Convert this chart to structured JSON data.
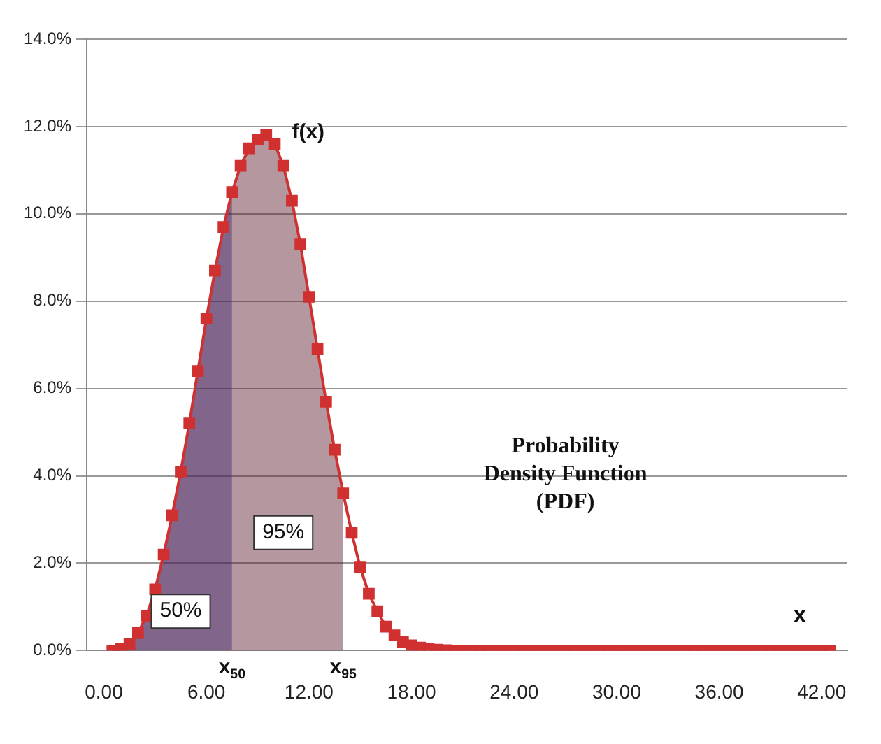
{
  "chart_data": {
    "type": "line",
    "xlabel": "x",
    "marker": "square",
    "grid": "y",
    "legend": false,
    "xlim": [
      -1,
      43.5
    ],
    "xticks": [
      {
        "value": 0,
        "label": "0.00"
      },
      {
        "value": 6,
        "label": "6.00"
      },
      {
        "value": 12,
        "label": "12.00"
      },
      {
        "value": 18,
        "label": "18.00"
      },
      {
        "value": 24,
        "label": "24.00"
      },
      {
        "value": 30,
        "label": "30.00"
      },
      {
        "value": 36,
        "label": "36.00"
      },
      {
        "value": 42,
        "label": "42.00"
      }
    ],
    "ylim": [
      0,
      14
    ],
    "yticks": [
      {
        "value": 0,
        "label": "0.0%"
      },
      {
        "value": 2,
        "label": "2.0%"
      },
      {
        "value": 4,
        "label": "4.0%"
      },
      {
        "value": 6,
        "label": "6.0%"
      },
      {
        "value": 8,
        "label": "8.0%"
      },
      {
        "value": 10,
        "label": "10.0%"
      },
      {
        "value": 12,
        "label": "12.0%"
      },
      {
        "value": 14,
        "label": "14.0%"
      }
    ],
    "series": [
      {
        "type": "area",
        "marker": "none",
        "color": "#5a1a2a",
        "x": [
          0.5,
          1,
          1.5,
          2,
          2.5,
          3,
          3.5,
          4,
          4.5,
          5,
          5.5,
          6,
          6.5,
          7,
          7.5,
          8,
          8.5,
          9,
          9.5,
          10,
          10.5,
          11,
          11.5,
          12,
          12.5,
          13,
          13.5,
          14
        ],
        "values": [
          0,
          0.05,
          0.15,
          0.4,
          0.8,
          1.4,
          2.2,
          3.1,
          4.1,
          5.2,
          6.4,
          7.6,
          8.7,
          9.7,
          10.5,
          11.1,
          11.5,
          11.7,
          11.8,
          11.6,
          11.1,
          10.3,
          9.3,
          8.1,
          6.9,
          5.7,
          4.6,
          3.6
        ]
      },
      {
        "type": "area",
        "marker": "none",
        "color": "#3333aa",
        "x": [
          0.5,
          1,
          1.5,
          2,
          2.5,
          3,
          3.5,
          4,
          4.5,
          5,
          5.5,
          6,
          6.5,
          7,
          7.5
        ],
        "values": [
          0,
          0.05,
          0.15,
          0.4,
          0.8,
          1.4,
          2.2,
          3.1,
          4.1,
          5.2,
          6.4,
          7.6,
          8.7,
          9.7,
          10.5
        ]
      },
      {
        "color": "#d03030",
        "x": [
          0.5,
          1,
          1.5,
          2,
          2.5,
          3,
          3.5,
          4,
          4.5,
          5,
          5.5,
          6,
          6.5,
          7,
          7.5,
          8,
          8.5,
          9,
          9.5,
          10,
          10.5,
          11,
          11.5,
          12,
          12.5,
          13,
          13.5,
          14,
          14.5,
          15,
          15.5,
          16,
          16.5,
          17,
          17.5,
          18,
          18.5,
          19,
          19.5,
          20,
          20.5,
          21,
          21.5,
          22,
          22.5,
          23,
          23.5,
          24,
          24.5,
          25,
          25.5,
          26,
          26.5,
          27,
          27.5,
          28,
          28.5,
          29,
          29.5,
          30,
          30.5,
          31,
          31.5,
          32,
          32.5,
          33,
          33.5,
          34,
          34.5,
          35,
          35.5,
          36,
          36.5,
          37,
          37.5,
          38,
          38.5,
          39,
          39.5,
          40,
          40.5,
          41,
          41.5,
          42,
          42.5
        ],
        "values": [
          0,
          0.05,
          0.15,
          0.4,
          0.8,
          1.4,
          2.2,
          3.1,
          4.1,
          5.2,
          6.4,
          7.6,
          8.7,
          9.7,
          10.5,
          11.1,
          11.5,
          11.7,
          11.8,
          11.6,
          11.1,
          10.3,
          9.3,
          8.1,
          6.9,
          5.7,
          4.6,
          3.6,
          2.7,
          1.9,
          1.3,
          0.9,
          0.55,
          0.35,
          0.2,
          0.12,
          0.07,
          0.04,
          0.02,
          0.01,
          0,
          0,
          0,
          0,
          0,
          0,
          0,
          0,
          0,
          0,
          0,
          0,
          0,
          0,
          0,
          0,
          0,
          0,
          0,
          0,
          0,
          0,
          0,
          0,
          0,
          0,
          0,
          0,
          0,
          0,
          0,
          0,
          0,
          0,
          0,
          0,
          0,
          0,
          0,
          0,
          0,
          0,
          0,
          0,
          0
        ]
      }
    ],
    "annotations": [
      "f(x)",
      {
        "text": "50%",
        "x": 4.5,
        "y": 0.9
      },
      {
        "text": "95%",
        "x": 10.5,
        "y": 2.7
      },
      {
        "text": "x$_{50}$",
        "x": 7.5,
        "y": 0
      },
      {
        "text": "x$_{95}$",
        "x": 14,
        "y": 0
      },
      "Probability Density Function (PDF)"
    ]
  }
}
